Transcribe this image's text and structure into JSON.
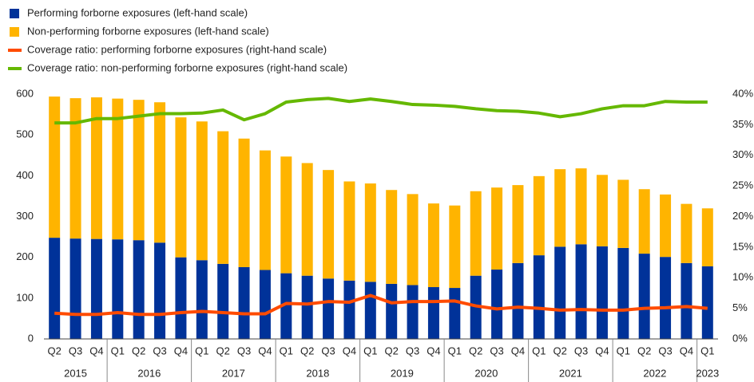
{
  "chart_data": {
    "type": "bar",
    "stacked": true,
    "legend": "top-left",
    "categories": [
      "Q2",
      "Q3",
      "Q4",
      "Q1",
      "Q2",
      "Q3",
      "Q4",
      "Q1",
      "Q2",
      "Q3",
      "Q4",
      "Q1",
      "Q2",
      "Q3",
      "Q4",
      "Q1",
      "Q2",
      "Q3",
      "Q4",
      "Q1",
      "Q2",
      "Q3",
      "Q4",
      "Q1",
      "Q2",
      "Q3",
      "Q4",
      "Q1",
      "Q2",
      "Q3",
      "Q4",
      "Q1"
    ],
    "years": [
      "2015",
      "2016",
      "2017",
      "2018",
      "2019",
      "2020",
      "2021",
      "2022",
      "2023"
    ],
    "ylim": [
      0,
      600
    ],
    "yticks": [
      0,
      100,
      200,
      300,
      400,
      500,
      600
    ],
    "y2lim": [
      0,
      40
    ],
    "y2ticks": [
      {
        "value": 0,
        "label": "0%"
      },
      {
        "value": 5,
        "label": "5%"
      },
      {
        "value": 10,
        "label": "10%"
      },
      {
        "value": 15,
        "label": "15%"
      },
      {
        "value": 20,
        "label": "20%"
      },
      {
        "value": 25,
        "label": "25%"
      },
      {
        "value": 30,
        "label": "30%"
      },
      {
        "value": 35,
        "label": "35%"
      },
      {
        "value": 40,
        "label": "40%"
      }
    ],
    "series": [
      {
        "name": "Performing forborne exposures (left-hand scale)",
        "type": "bar",
        "color": "#003299",
        "values": [
          248,
          246,
          245,
          244,
          242,
          236,
          200,
          193,
          184,
          176,
          169,
          161,
          155,
          148,
          143,
          140,
          135,
          132,
          127,
          125,
          155,
          170,
          186,
          205,
          226,
          232,
          227,
          223,
          209,
          201,
          186,
          178
        ]
      },
      {
        "name": "Non-performing forborne exposures (left-hand scale)",
        "type": "bar",
        "color": "#ffb400",
        "values": [
          346,
          344,
          347,
          345,
          344,
          344,
          343,
          340,
          325,
          315,
          293,
          286,
          276,
          266,
          243,
          241,
          230,
          223,
          205,
          202,
          207,
          201,
          191,
          194,
          190,
          186,
          175,
          167,
          158,
          153,
          145,
          142
        ]
      },
      {
        "name": "Coverage ratio: performing forborne exposures (right-hand scale)",
        "type": "line",
        "axis": "y2",
        "color": "#ff4b00",
        "values": [
          4.2,
          4.0,
          4.0,
          4.3,
          4.0,
          4.0,
          4.3,
          4.5,
          4.3,
          4.1,
          4.1,
          5.8,
          5.7,
          6.1,
          6.0,
          7.1,
          5.9,
          6.1,
          6.1,
          6.2,
          5.4,
          4.9,
          5.2,
          5.0,
          4.7,
          4.8,
          4.7,
          4.7,
          5.0,
          5.1,
          5.3,
          5.0
        ]
      },
      {
        "name": "Coverage ratio: non-performing forborne exposures (right-hand scale)",
        "type": "line",
        "axis": "y2",
        "color": "#65b800",
        "values": [
          35.3,
          35.3,
          36.0,
          36.0,
          36.4,
          36.8,
          36.8,
          36.9,
          37.4,
          35.8,
          36.8,
          38.7,
          39.1,
          39.3,
          38.8,
          39.2,
          38.8,
          38.3,
          38.2,
          38.0,
          37.6,
          37.3,
          37.2,
          36.9,
          36.3,
          36.8,
          37.6,
          38.1,
          38.1,
          38.8,
          38.7,
          38.7
        ]
      }
    ]
  }
}
